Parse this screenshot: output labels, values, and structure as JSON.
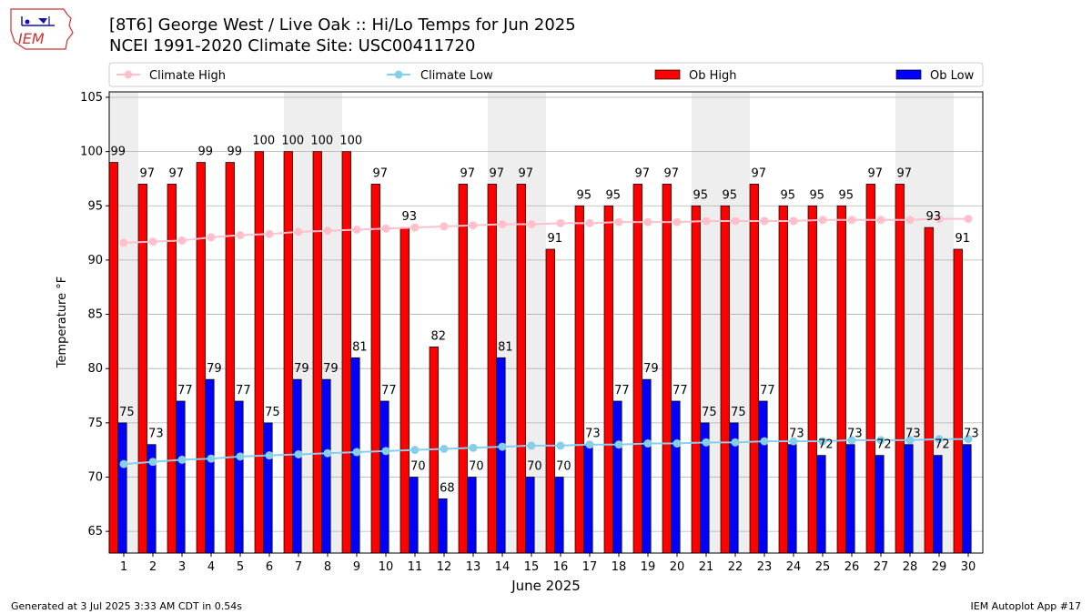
{
  "page": {
    "title_line1": "[8T6] George West / Live Oak :: Hi/Lo Temps for Jun 2025",
    "title_line2": "NCEI 1991-2020 Climate Site: USC00411720",
    "footer_left": "Generated at 3 Jul 2025 3:33 AM CDT in 0.54s",
    "footer_right": "IEM Autoplot App #17",
    "logo_text": "IEM"
  },
  "colors": {
    "ob_high": "#ff0000",
    "ob_low": "#0000ff",
    "climate_high": "#ffc0cb",
    "climate_low": "#87ceeb",
    "weekend_shade": "#eeeeee",
    "grid": "#b0b0b0"
  },
  "chart_data": {
    "type": "bar",
    "xlabel": "June 2025",
    "ylabel": "Temperature °F",
    "ylim": [
      63,
      105.5
    ],
    "yticks": [
      65,
      70,
      75,
      80,
      85,
      90,
      95,
      100,
      105
    ],
    "grid": "horizontal",
    "legend_placement": "top",
    "categories": [
      "1",
      "2",
      "3",
      "4",
      "5",
      "6",
      "7",
      "8",
      "9",
      "10",
      "11",
      "12",
      "13",
      "14",
      "15",
      "16",
      "17",
      "18",
      "19",
      "20",
      "21",
      "22",
      "23",
      "24",
      "25",
      "26",
      "27",
      "28",
      "29",
      "30"
    ],
    "shaded_days": [
      1,
      7,
      8,
      14,
      15,
      21,
      22,
      28,
      29
    ],
    "series": [
      {
        "name": "Ob High",
        "kind": "bar",
        "values": [
          99,
          97,
          97,
          99,
          99,
          100,
          100,
          100,
          100,
          97,
          93,
          82,
          97,
          97,
          97,
          91,
          95,
          95,
          97,
          97,
          95,
          95,
          97,
          95,
          95,
          95,
          97,
          97,
          93,
          91
        ]
      },
      {
        "name": "Ob Low",
        "kind": "bar",
        "values": [
          75,
          73,
          77,
          79,
          77,
          75,
          79,
          79,
          81,
          77,
          70,
          68,
          70,
          81,
          70,
          70,
          73,
          77,
          79,
          77,
          75,
          75,
          77,
          73,
          72,
          73,
          72,
          73,
          72,
          73
        ]
      },
      {
        "name": "Climate High",
        "kind": "line",
        "values": [
          91.6,
          91.7,
          91.8,
          92.1,
          92.3,
          92.4,
          92.6,
          92.7,
          92.8,
          92.9,
          93.0,
          93.1,
          93.2,
          93.3,
          93.3,
          93.4,
          93.4,
          93.5,
          93.5,
          93.5,
          93.6,
          93.6,
          93.6,
          93.6,
          93.7,
          93.7,
          93.7,
          93.7,
          93.8,
          93.8
        ]
      },
      {
        "name": "Climate Low",
        "kind": "line",
        "values": [
          71.2,
          71.4,
          71.6,
          71.7,
          71.9,
          72.0,
          72.1,
          72.2,
          72.3,
          72.4,
          72.5,
          72.6,
          72.7,
          72.8,
          72.9,
          72.9,
          73.0,
          73.0,
          73.1,
          73.1,
          73.2,
          73.2,
          73.3,
          73.3,
          73.3,
          73.4,
          73.4,
          73.4,
          73.5,
          73.5
        ]
      }
    ]
  }
}
